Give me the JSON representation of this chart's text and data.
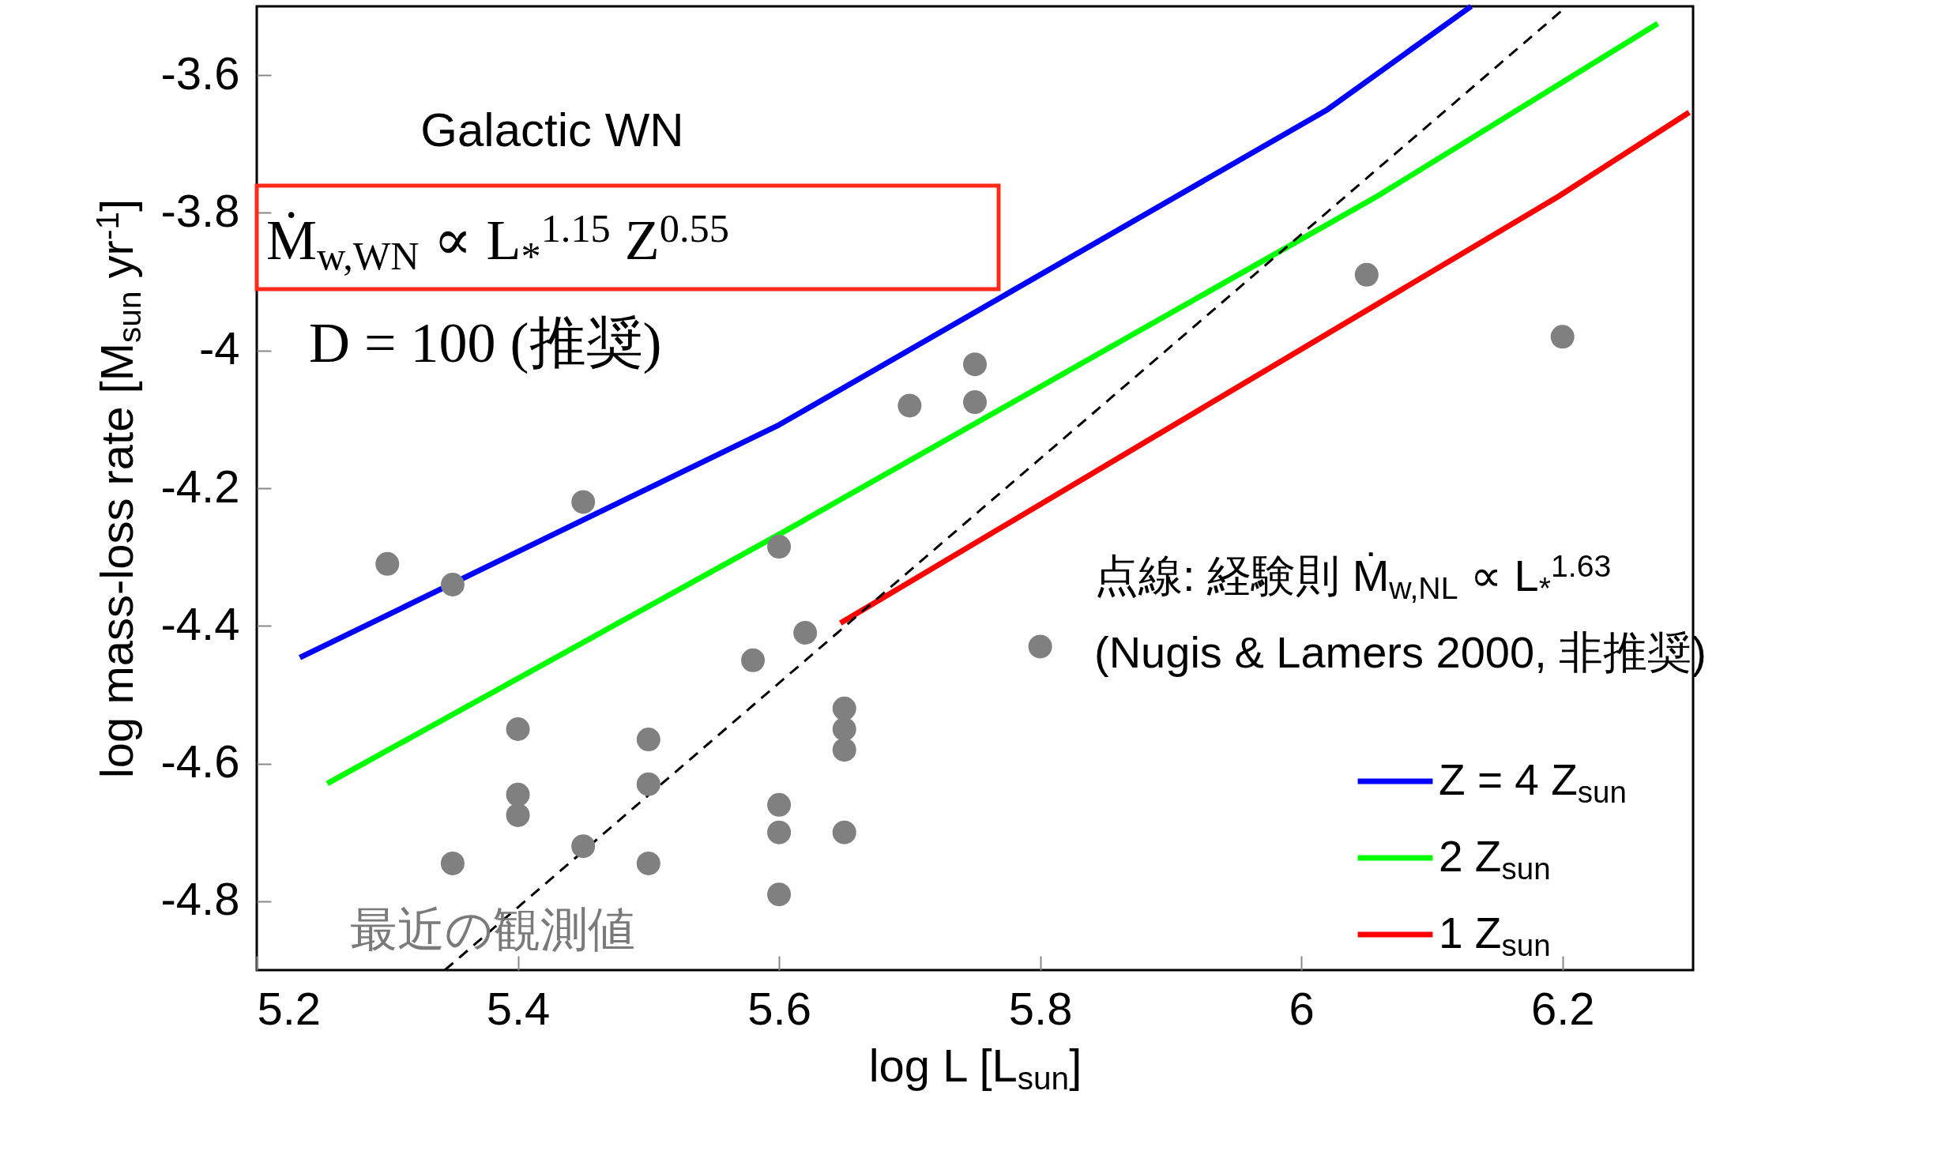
{
  "chart_data": {
    "type": "line",
    "xlabel": "log L [L$_{sun}$]",
    "ylabel": "log mass-loss rate [M$_{sun}$ yr$^{-1}$]",
    "xlim": [
      5.2,
      6.3
    ],
    "ylim": [
      -4.9,
      -3.5
    ],
    "xticks": [
      5.2,
      5.4,
      5.6,
      5.8,
      6,
      6.2
    ],
    "yticks": [
      -4.8,
      -4.6,
      -4.4,
      -4.2,
      -4,
      -3.8,
      -3.6
    ],
    "grid": false,
    "legend": "bottom right",
    "marker": "none",
    "series": [
      {
        "name": "Z = 4 Z$_{sun}$",
        "color": "#0000ff",
        "x": [
          5.233,
          5.6,
          6.02,
          6.13
        ],
        "values": [
          -4.446,
          -4.108,
          -3.65,
          -3.5
        ]
      },
      {
        "name": "2 Z$_{sun}$",
        "color": "#00ff00",
        "x": [
          5.254,
          5.602,
          6.058,
          6.273
        ],
        "values": [
          -4.629,
          -4.265,
          -3.776,
          -3.525
        ]
      },
      {
        "name": "1 Z$_{sun}$",
        "color": "#ff0000",
        "x": [
          5.647,
          6.197,
          6.297
        ],
        "values": [
          -4.396,
          -3.776,
          -3.654
        ]
      },
      {
        "type": "line",
        "color": "#000000",
        "line_style": "dashed",
        "x": [
          5.344,
          6.199
        ],
        "values": [
          -4.9,
          -3.507
        ]
      },
      {
        "type": "scatter",
        "color": "#808080",
        "marker": "circle",
        "x": [
          5.3,
          5.35,
          5.45,
          5.4,
          5.4,
          5.4,
          5.35,
          5.45,
          5.5,
          5.5,
          5.5,
          5.58,
          5.6,
          5.62,
          5.6,
          5.6,
          5.6,
          5.65,
          5.65,
          5.65,
          5.65,
          5.7,
          5.75,
          5.75,
          5.8,
          6.05,
          6.2
        ],
        "values": [
          -4.31,
          -4.34,
          -4.22,
          -4.55,
          -4.645,
          -4.675,
          -4.745,
          -4.72,
          -4.565,
          -4.63,
          -4.745,
          -4.45,
          -4.285,
          -4.41,
          -4.66,
          -4.7,
          -4.79,
          -4.52,
          -4.55,
          -4.58,
          -4.7,
          -4.08,
          -4.02,
          -4.075,
          -4.43,
          -3.89,
          -3.98
        ]
      }
    ],
    "annotations": [
      "Galactic WN",
      "Ṁ$_{w,WN}$ ∝ L$_{*}$$^{1.15}$  Z$^{0.55}$",
      "D = 100   (推奨)",
      "点線: 経験則 Ṁ$_{w,NL}$ ∝ L$_{*}$$^{1.63}$",
      "(Nugis & Lamers 2000, 非推奨)",
      "最近の観測値"
    ]
  }
}
